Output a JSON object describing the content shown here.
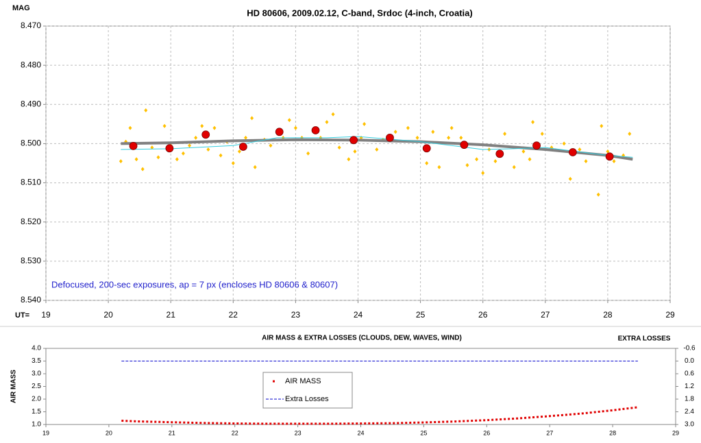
{
  "chart_data": [
    {
      "type": "scatter",
      "title": "HD 80606, 2009.02.12, C-band, Srdoc (4-inch, Croatia)",
      "y_label": "MAG",
      "x_label": "UT=",
      "annotation": "Defocused, 200-sec exposures, ap = 7 px (encloses HD 80606 & 80607)",
      "xlim": [
        19,
        29
      ],
      "xticks": [
        19,
        20,
        21,
        22,
        23,
        24,
        25,
        26,
        27,
        28,
        29
      ],
      "ylim": [
        8.54,
        8.47
      ],
      "yticks": [
        {
          "value": 8.47,
          "label": "8.470"
        },
        {
          "value": 8.48,
          "label": "8.480"
        },
        {
          "value": 8.49,
          "label": "8.490"
        },
        {
          "value": 8.5,
          "label": "8.500"
        },
        {
          "value": 8.51,
          "label": "8.510"
        },
        {
          "value": 8.52,
          "label": "8.520"
        },
        {
          "value": 8.53,
          "label": "8.530"
        },
        {
          "value": 8.54,
          "label": "8.540"
        }
      ],
      "grid": true,
      "series": [
        {
          "mark": "diamond",
          "color": "#ffc000",
          "x": [
            20.2,
            20.28,
            20.35,
            20.45,
            20.55,
            20.6,
            20.7,
            20.8,
            20.9,
            21.0,
            21.1,
            21.2,
            21.3,
            21.4,
            21.5,
            21.6,
            21.7,
            21.8,
            21.9,
            22.0,
            22.1,
            22.2,
            22.3,
            22.35,
            22.5,
            22.6,
            22.8,
            22.9,
            23.0,
            23.1,
            23.2,
            23.4,
            23.5,
            23.6,
            23.7,
            23.85,
            23.95,
            24.05,
            24.1,
            24.3,
            24.4,
            24.6,
            24.8,
            24.95,
            25.1,
            25.2,
            25.3,
            25.45,
            25.5,
            25.65,
            25.75,
            25.9,
            26.0,
            26.1,
            26.2,
            26.35,
            26.5,
            26.65,
            26.75,
            26.8,
            26.95,
            27.1,
            27.3,
            27.4,
            27.55,
            27.65,
            27.85,
            27.9,
            28.0,
            28.1,
            28.25,
            28.35
          ],
          "values": [
            8.5045,
            8.4995,
            8.496,
            8.504,
            8.5065,
            8.4915,
            8.501,
            8.5035,
            8.4955,
            8.5005,
            8.504,
            8.5025,
            8.5005,
            8.4985,
            8.4955,
            8.5015,
            8.496,
            8.503,
            8.4995,
            8.505,
            8.502,
            8.4985,
            8.4935,
            8.506,
            8.499,
            8.5005,
            8.4985,
            8.494,
            8.496,
            8.4985,
            8.5025,
            8.4985,
            8.4945,
            8.4925,
            8.501,
            8.504,
            8.502,
            8.4985,
            8.495,
            8.5015,
            8.499,
            8.497,
            8.496,
            8.4985,
            8.505,
            8.497,
            8.506,
            8.4985,
            8.496,
            8.4985,
            8.5055,
            8.504,
            8.5075,
            8.5015,
            8.5045,
            8.4975,
            8.506,
            8.502,
            8.504,
            8.4945,
            8.4975,
            8.501,
            8.5,
            8.509,
            8.5015,
            8.5045,
            8.513,
            8.4955,
            8.502,
            8.5045,
            8.503,
            8.4975
          ]
        },
        {
          "mark": "line",
          "color": "#808080",
          "width": 4,
          "x": [
            20.2,
            21,
            22,
            23,
            24,
            25,
            26,
            27,
            28,
            28.4
          ],
          "values": [
            8.5,
            8.4998,
            8.4993,
            8.499,
            8.4991,
            8.4995,
            8.5003,
            8.5015,
            8.503,
            8.504
          ]
        },
        {
          "mark": "line",
          "color": "#33ccdd",
          "width": 1,
          "x": [
            20.2,
            21,
            22,
            22.7,
            23.5,
            24,
            25,
            25.5,
            26,
            26.5,
            27,
            27.5,
            28,
            28.4
          ],
          "values": [
            8.5015,
            8.5013,
            8.5005,
            8.4985,
            8.4985,
            8.4982,
            8.4995,
            8.5005,
            8.5015,
            8.5013,
            8.501,
            8.502,
            8.503,
            8.5035
          ]
        },
        {
          "mark": "circle",
          "color": "#e00000",
          "x": [
            20.4,
            20.98,
            21.56,
            22.16,
            22.74,
            23.32,
            23.93,
            24.51,
            25.1,
            25.7,
            26.27,
            26.86,
            27.44,
            28.03
          ],
          "values": [
            8.5006,
            8.5012,
            8.4977,
            8.5008,
            8.497,
            8.4966,
            8.4991,
            8.4985,
            8.5012,
            8.5003,
            8.5026,
            8.5005,
            8.5022,
            8.5033
          ]
        }
      ]
    },
    {
      "type": "line",
      "title": "AIR MASS & EXTRA LOSSES (CLOUDS, DEW, WAVES, WIND)",
      "y_label": "AIR MASS",
      "y2_label": "EXTRA LOSSES",
      "xlim": [
        19,
        29
      ],
      "xticks": [
        19,
        20,
        21,
        22,
        23,
        24,
        25,
        26,
        27,
        28,
        29
      ],
      "ylim": [
        1,
        4
      ],
      "yticks": [
        {
          "value": 1,
          "label": "1.0"
        },
        1.5,
        {
          "value": 2,
          "label": "2.0"
        },
        2.5,
        {
          "value": 3,
          "label": "3.0"
        },
        3.5,
        {
          "value": 4,
          "label": "4.0"
        }
      ],
      "y2lim": [
        3,
        -0.6
      ],
      "y2ticks": [
        -0.6,
        {
          "value": 0,
          "label": "0.0"
        },
        0.6,
        1.2,
        1.8,
        2.4,
        {
          "value": 3,
          "label": "3.0"
        }
      ],
      "grid": false,
      "series": [
        {
          "name": "AIR MASS",
          "color": "#e00000",
          "mark": "dotted",
          "x": [
            20.2,
            20.5,
            21,
            21.5,
            22,
            22.5,
            23,
            23.5,
            24,
            24.5,
            25,
            25.5,
            26,
            26.5,
            27,
            27.5,
            28,
            28.4
          ],
          "values": [
            1.15,
            1.12,
            1.09,
            1.06,
            1.04,
            1.03,
            1.03,
            1.03,
            1.04,
            1.05,
            1.08,
            1.12,
            1.17,
            1.24,
            1.33,
            1.43,
            1.56,
            1.68
          ]
        },
        {
          "name": "Extra Losses",
          "color": "#0000cc",
          "mark": "dashed",
          "axis": "y2",
          "x": [
            20.2,
            21,
            22,
            23,
            24,
            25,
            26,
            27,
            28,
            28.4
          ],
          "values": [
            0,
            0,
            0,
            0,
            0,
            0,
            0,
            0,
            0,
            0
          ]
        }
      ]
    }
  ]
}
